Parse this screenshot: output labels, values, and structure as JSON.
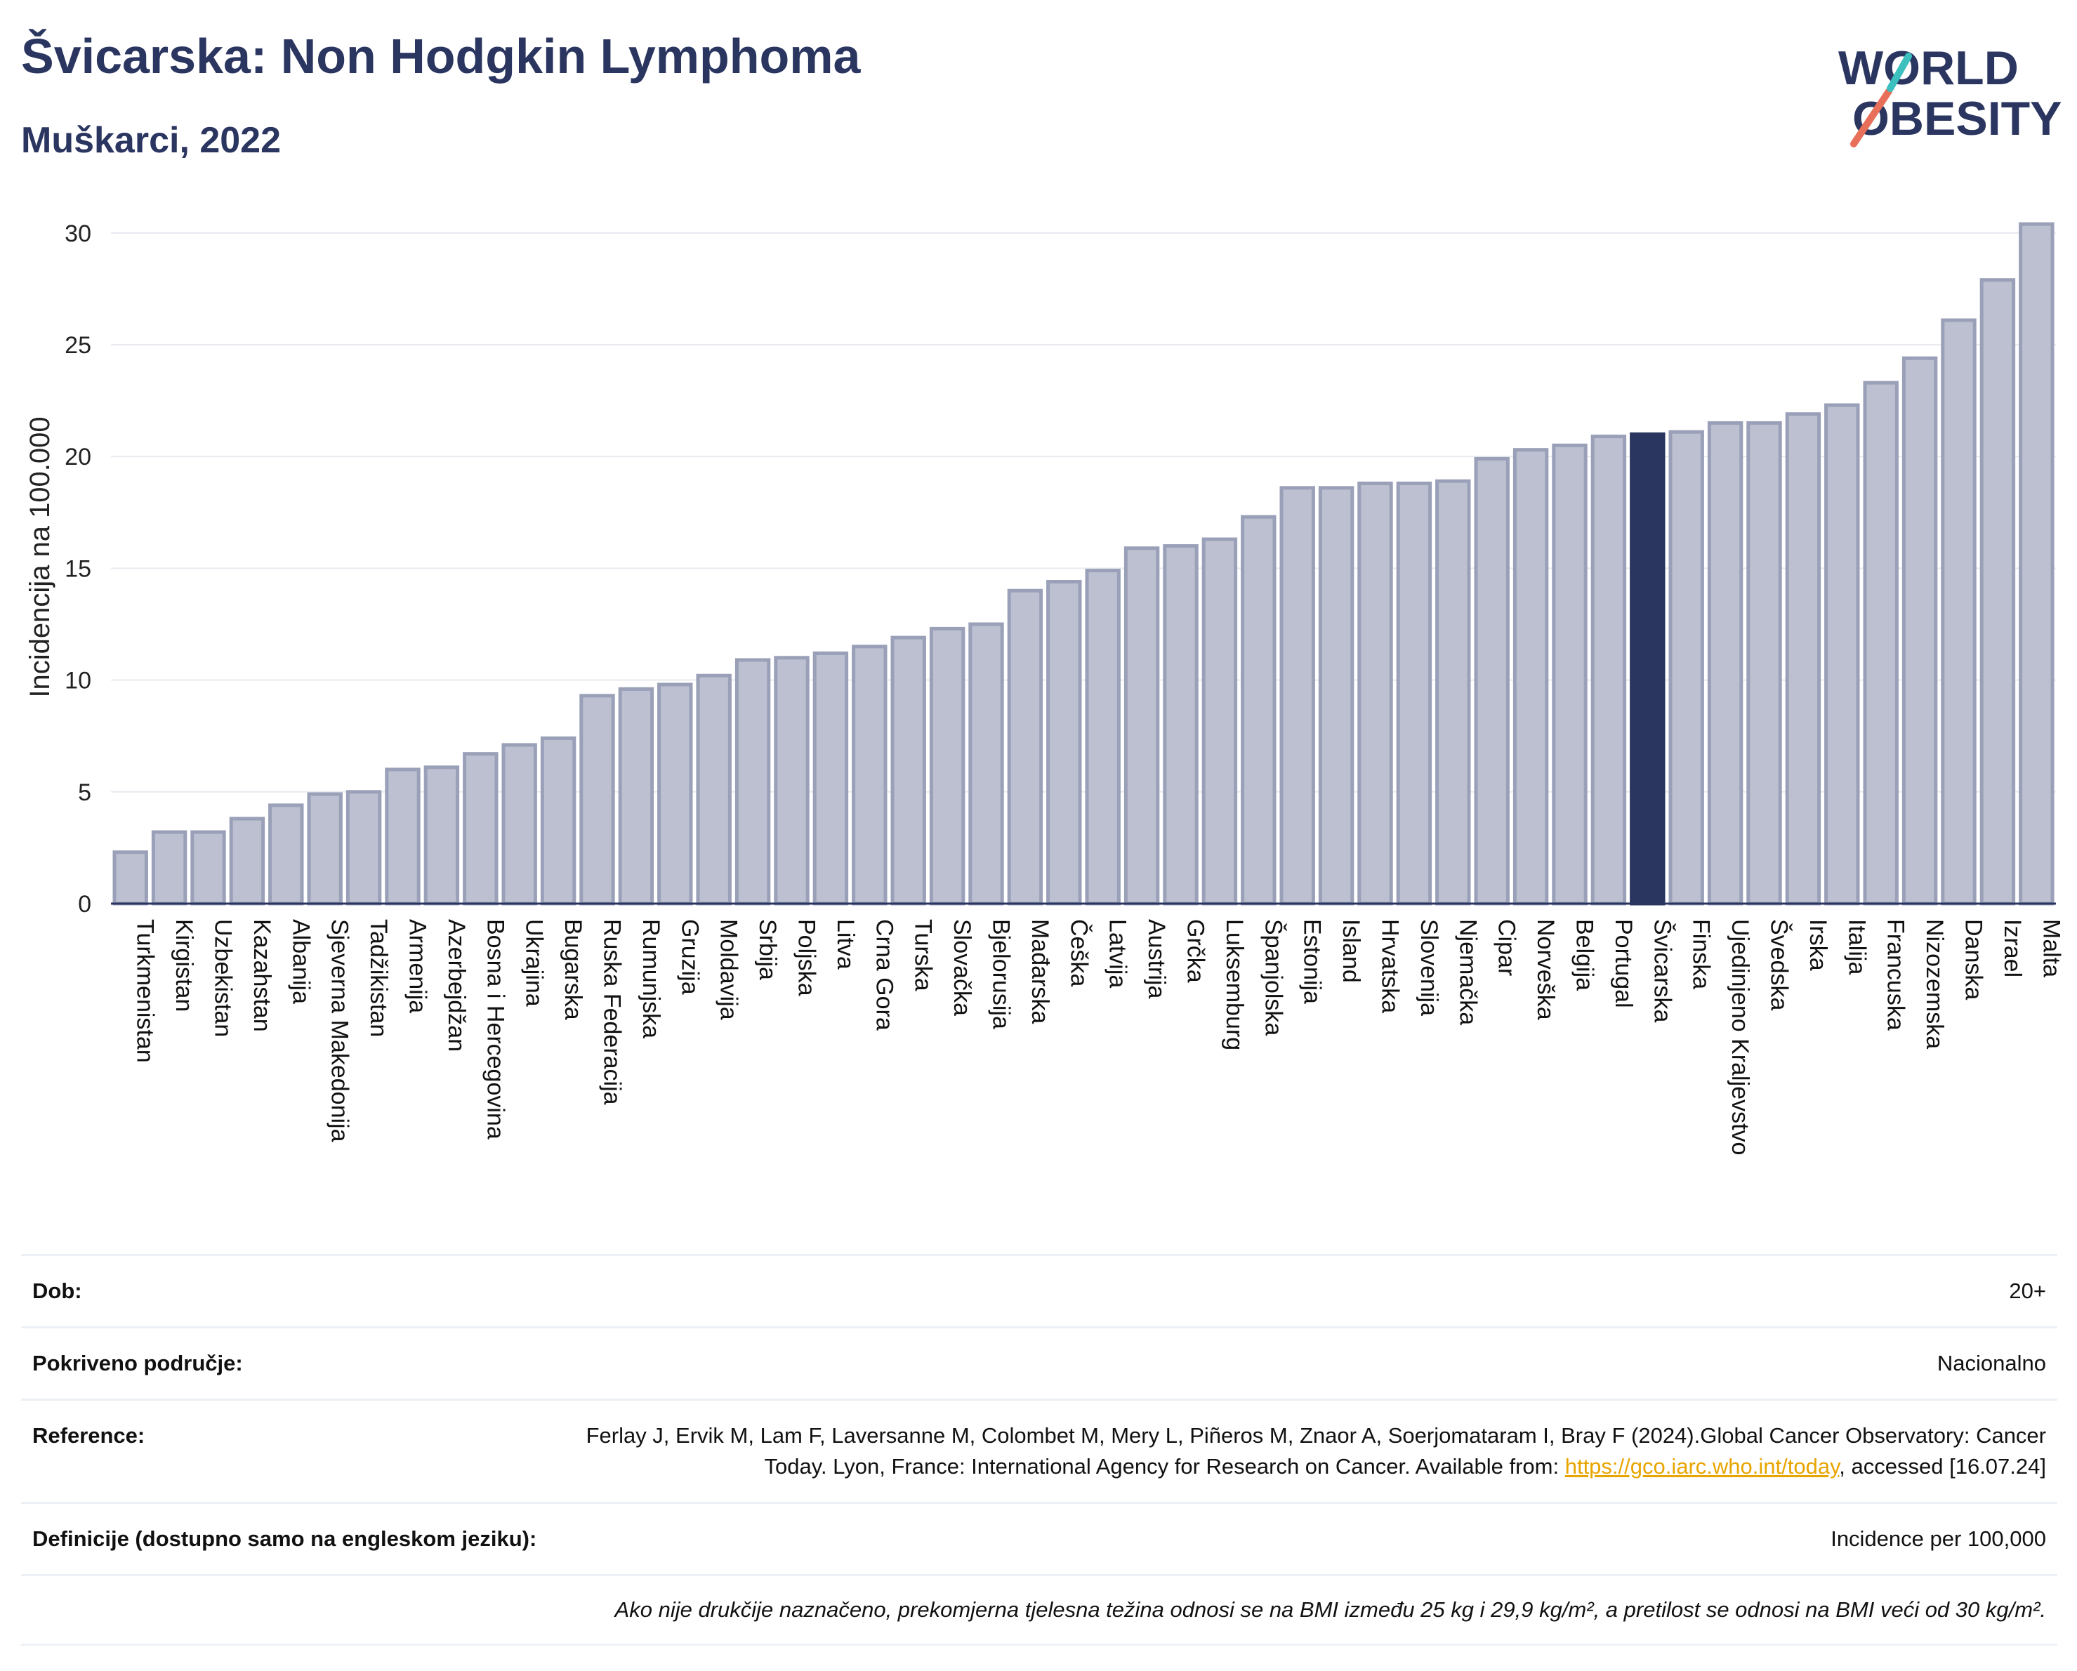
{
  "header": {
    "title": "Švicarska: Non Hodgkin Lymphoma",
    "subtitle": "Muškarci, 2022"
  },
  "logo": {
    "line1": "WORLD",
    "line2": "OBESITY"
  },
  "colors": {
    "bar": "#bcc0d0",
    "bar_stroke": "#9aa0b8",
    "highlight": "#2a3560",
    "axis": "#2a3560",
    "grid": "#e8eaf0"
  },
  "chart_data": {
    "type": "bar",
    "ylabel": "Incidencija na 100.000",
    "ylim": [
      0,
      31
    ],
    "yticks": [
      0,
      5,
      10,
      15,
      20,
      25,
      30
    ],
    "highlight": "Švicarska",
    "grid": true,
    "categories": [
      "Turkmenistan",
      "Kirgistan",
      "Uzbekistan",
      "Kazahstan",
      "Albanija",
      "Sjeverna Makedonija",
      "Tadžikistan",
      "Armenija",
      "Azerbejdžan",
      "Bosna i Hercegovina",
      "Ukrajina",
      "Bugarska",
      "Ruska Federacija",
      "Rumunjska",
      "Gruzija",
      "Moldavija",
      "Srbija",
      "Poljska",
      "Litva",
      "Crna Gora",
      "Turska",
      "Slovačka",
      "Bjelorusija",
      "Mađarska",
      "Češka",
      "Latvija",
      "Austrija",
      "Grčka",
      "Luksemburg",
      "Španjolska",
      "Estonija",
      "Island",
      "Hrvatska",
      "Slovenija",
      "Njemačka",
      "Cipar",
      "Norveška",
      "Belgija",
      "Portugal",
      "Švicarska",
      "Finska",
      "Ujedinjeno Kraljevstvo",
      "Švedska",
      "Irska",
      "Italija",
      "Francuska",
      "Nizozemska",
      "Danska",
      "Izrael",
      "Malta"
    ],
    "values": [
      2.3,
      3.2,
      3.2,
      3.8,
      4.4,
      4.9,
      5.0,
      6.0,
      6.1,
      6.7,
      7.1,
      7.4,
      9.3,
      9.6,
      9.8,
      10.2,
      10.9,
      11.0,
      11.2,
      11.5,
      11.9,
      12.3,
      12.5,
      14.0,
      14.4,
      14.9,
      15.9,
      16.0,
      16.3,
      17.3,
      18.6,
      18.6,
      18.8,
      18.8,
      18.9,
      19.9,
      20.3,
      20.5,
      20.9,
      21.0,
      21.1,
      21.5,
      21.5,
      21.9,
      22.3,
      23.3,
      24.4,
      26.1,
      27.9,
      30.4
    ]
  },
  "info": {
    "rows": [
      {
        "key": "Dob:",
        "value": "20+"
      },
      {
        "key": "Pokriveno područje:",
        "value": "Nacionalno"
      },
      {
        "key": "Reference:",
        "value": "Ferlay J, Ervik M, Lam F, Laversanne M, Colombet M, Mery L, Piñeros M, Znaor A, Soerjomataram I, Bray F (2024).Global Cancer Observatory: Cancer Today. Lyon, France: International Agency for Research on Cancer. Available from:",
        "link": "https://gco.iarc.who.int/today",
        "suffix": ", accessed [16.07.24]"
      },
      {
        "key": "Definicije (dostupno samo na engleskom jeziku):",
        "value": "Incidence per 100,000"
      }
    ],
    "note": "Ako nije drukčije naznačeno, prekomjerna tjelesna težina odnosi se na BMI između 25 kg i 29,9 kg/m², a pretilost se odnosi na BMI veći od 30 kg/m²."
  }
}
